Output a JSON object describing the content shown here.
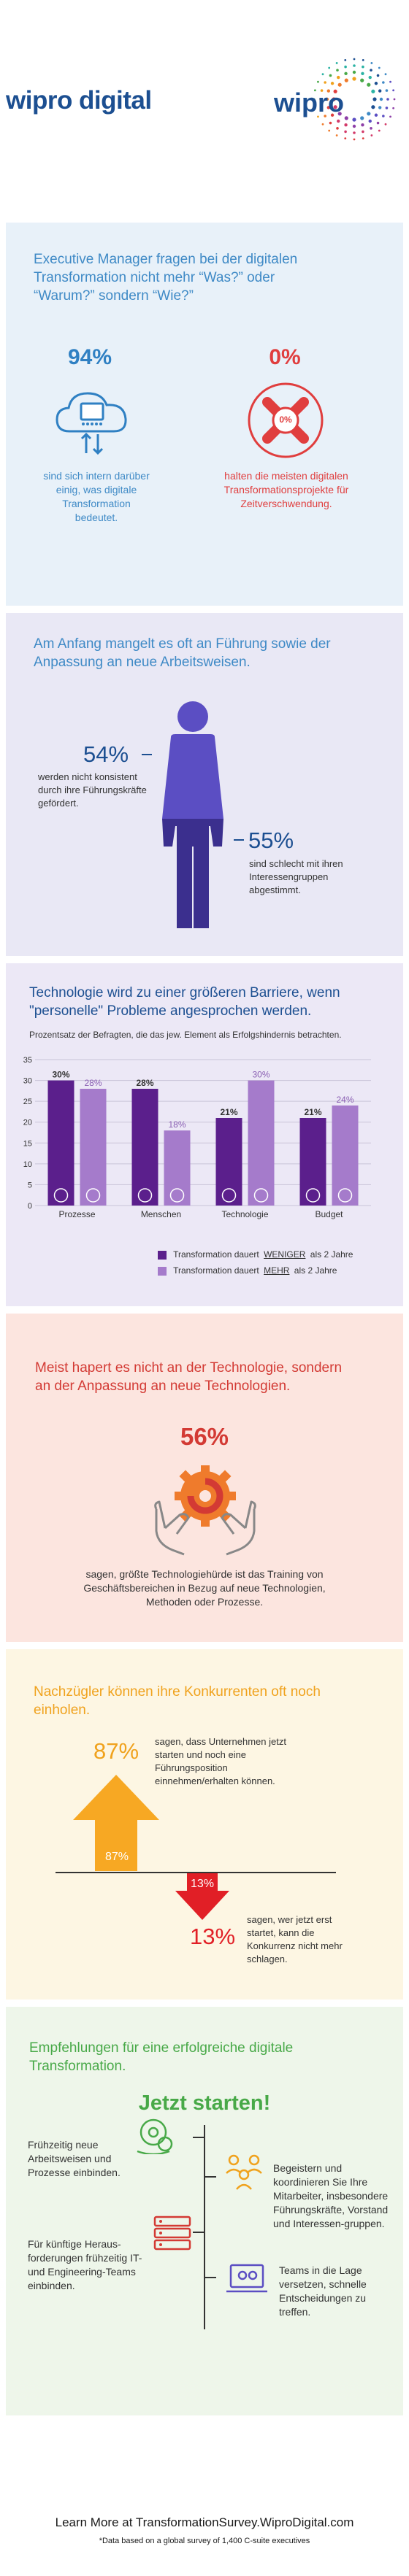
{
  "header": {
    "brand_text": "wipro digital",
    "logo_text": "wipro"
  },
  "section1": {
    "heading": "Executive Manager fragen bei der digitalen Transformation nicht mehr “Was?” oder “Warum?” sondern “Wie?”",
    "left_stat": "94%",
    "left_text": "sind sich intern darüber einig, was digitale Transformation bedeutet.",
    "right_stat": "0%",
    "right_icon_label": "0%",
    "right_text": "halten die meisten digitalen Transformationsprojekte für Zeitverschwendung."
  },
  "section2": {
    "heading": "Am Anfang mangelt es oft an Führung sowie der Anpassung an neue Arbeitsweisen.",
    "stat1": "54%",
    "stat1_text": "werden nicht konsistent durch ihre Führungskräfte gefördert.",
    "stat2": "55%",
    "stat2_text": "sind schlecht mit ihren Interessengruppen abgestimmt."
  },
  "section3": {
    "heading": "Technologie wird zu einer größeren Barriere, wenn \"personelle\" Probleme angesprochen werden.",
    "subheading": "Prozentsatz der Befragten, die das jew. Element als Erfolgshindernis betrachten.",
    "legend_less_prefix": "Transformation dauert",
    "legend_less_word": "WENIGER",
    "legend_less_suffix": "als 2 Jahre",
    "legend_more_prefix": "Transformation dauert",
    "legend_more_word": "MEHR",
    "legend_more_suffix": "als 2 Jahre",
    "colors": {
      "less": "#5b1f8c",
      "more": "#a57bcb"
    }
  },
  "chart_data": {
    "type": "bar",
    "categories": [
      "Prozesse",
      "Menschen",
      "Technologie",
      "Budget"
    ],
    "series": [
      {
        "name": "Transformation dauert WENIGER als 2 Jahre",
        "values": [
          30,
          28,
          21,
          21
        ]
      },
      {
        "name": "Transformation dauert MEHR als 2 Jahre",
        "values": [
          28,
          18,
          30,
          24
        ]
      }
    ],
    "value_labels": [
      [
        "30%",
        "28%"
      ],
      [
        "28%",
        "18%"
      ],
      [
        "21%",
        "30%"
      ],
      [
        "21%",
        "24%"
      ]
    ],
    "yticks": [
      0,
      5,
      10,
      15,
      20,
      25,
      30,
      35
    ],
    "ylim": [
      0,
      35
    ],
    "legend": "bottom"
  },
  "section4": {
    "heading": "Meist hapert es nicht an der Technologie, sondern an der Anpassung an neue Technologien.",
    "stat": "56%",
    "text": "sagen, größte Technologiehürde ist das Training von Geschäftsbereichen in Bezug auf neue Technologien, Methoden oder Prozesse."
  },
  "section5": {
    "heading": "Nachzügler können ihre Konkurrenten oft noch einholen.",
    "up_stat": "87%",
    "up_text": "sagen, dass Unternehmen jetzt starten und noch eine Führungsposition einnehmen/erhalten können.",
    "up_arrow_label": "87%",
    "down_arrow_label": "13%",
    "down_stat": "13%",
    "down_text": "sagen, wer jetzt erst startet, kann die Konkurrenz nicht mehr schlagen."
  },
  "section6": {
    "heading": "Empfehlungen für eine erfolgreiche digitale Transformation.",
    "cta": "Jetzt starten!",
    "item1": "Frühzeitig neue Arbeitsweisen und Prozesse einbinden.",
    "item2": "Für künftige Heraus-forderungen frühzeitig IT- und Engineering-Teams einbinden.",
    "item3": "Begeistern und koordinieren Sie Ihre Mitarbeiter, insbesondere Führungskräfte, Vorstand und Interessen-gruppen.",
    "item4": "Teams in die Lage versetzen, schnelle Entscheidungen zu treffen."
  },
  "footer": {
    "learn_more": "Learn More at TransformationSurvey.WiproDigital.com",
    "note": "*Data based on a global survey of 1,400 C-suite executives"
  }
}
